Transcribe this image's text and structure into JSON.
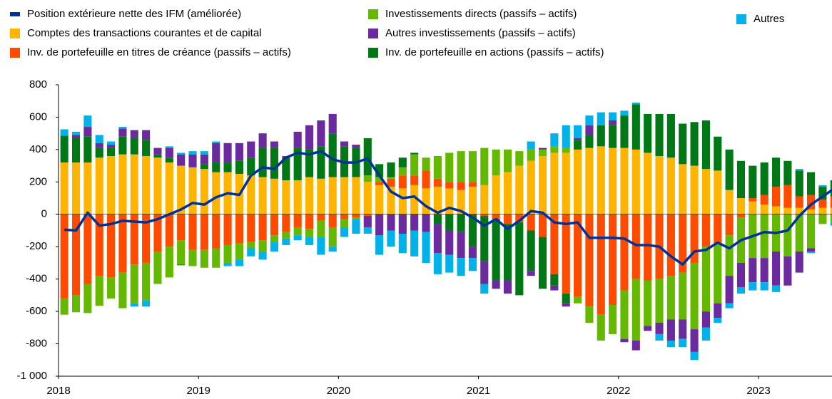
{
  "chart_data": {
    "type": "bar",
    "categories": [
      "2018",
      null,
      null,
      null,
      null,
      null,
      null,
      null,
      null,
      null,
      null,
      null,
      "2019",
      null,
      null,
      null,
      null,
      null,
      null,
      null,
      null,
      null,
      null,
      null,
      "2020",
      null,
      null,
      null,
      null,
      null,
      null,
      null,
      null,
      null,
      null,
      null,
      "2021",
      null,
      null,
      null,
      null,
      null,
      null,
      null,
      null,
      null,
      null,
      null,
      "2022",
      null,
      null,
      null,
      null,
      null,
      null,
      null,
      null,
      null,
      null,
      null,
      "2023",
      null,
      null,
      null,
      null,
      null,
      null
    ],
    "ylim": [
      -1000,
      800
    ],
    "yticks": [
      800,
      600,
      400,
      200,
      0,
      -200,
      -400,
      -600,
      -800,
      {
        "value": -1000,
        "label": "-1 000"
      }
    ],
    "grid": false,
    "series": [
      {
        "name": "Position extérieure nette des IFM (améliorée)",
        "type": "line",
        "color": "#003299",
        "values": [
          -95,
          -100,
          10,
          -70,
          -60,
          -40,
          -45,
          -50,
          -30,
          0,
          30,
          70,
          60,
          105,
          130,
          120,
          240,
          290,
          280,
          350,
          380,
          370,
          390,
          340,
          320,
          320,
          345,
          240,
          140,
          100,
          110,
          50,
          10,
          40,
          20,
          -20,
          -70,
          -30,
          -90,
          -40,
          20,
          10,
          -50,
          -60,
          -50,
          -145,
          -145,
          -145,
          -150,
          -190,
          -190,
          -200,
          -260,
          -310,
          -230,
          -220,
          -175,
          -210,
          -160,
          -135,
          -110,
          -115,
          -100,
          -10,
          60,
          110,
          160
        ]
      },
      {
        "name": "Comptes des transactions courantes et de capital",
        "type": "bar",
        "color": "#ffb400",
        "values": [
          320,
          320,
          320,
          350,
          360,
          370,
          370,
          360,
          350,
          320,
          300,
          290,
          280,
          260,
          260,
          250,
          240,
          230,
          220,
          210,
          210,
          230,
          220,
          230,
          230,
          230,
          200,
          180,
          170,
          160,
          180,
          160,
          170,
          160,
          150,
          170,
          180,
          240,
          260,
          300,
          330,
          360,
          380,
          380,
          400,
          410,
          420,
          410,
          410,
          400,
          380,
          360,
          350,
          310,
          300,
          280,
          270,
          150,
          100,
          80,
          60,
          50,
          40,
          40,
          30,
          40,
          40
        ]
      },
      {
        "name": "Inv. de portefeuille en titres de créance (passifs – actifs)",
        "type": "bar",
        "color": "#ff4b00",
        "values": [
          -520,
          -500,
          -430,
          -380,
          -390,
          -360,
          -310,
          -300,
          -230,
          -200,
          -160,
          -220,
          -220,
          -210,
          -190,
          -180,
          -170,
          -160,
          -130,
          -110,
          -80,
          -90,
          -40,
          -80,
          -30,
          -20,
          -10,
          20,
          50,
          80,
          60,
          110,
          50,
          40,
          50,
          30,
          -10,
          -30,
          -60,
          -50,
          -100,
          -140,
          -370,
          -490,
          -510,
          -570,
          -620,
          -560,
          -470,
          -400,
          -410,
          -400,
          -380,
          -360,
          -300,
          -200,
          -180,
          -130,
          -20,
          20,
          60,
          120,
          140,
          70,
          90,
          50,
          70
        ]
      },
      {
        "name": "Investissements directs (passifs – actifs)",
        "type": "bar",
        "color": "#65b800",
        "values": [
          -100,
          -105,
          -180,
          -185,
          -130,
          -220,
          -240,
          -230,
          -200,
          -190,
          -150,
          -100,
          -110,
          -120,
          -110,
          -100,
          -40,
          -70,
          -40,
          -40,
          -50,
          -50,
          -100,
          -120,
          -50,
          -10,
          40,
          30,
          10,
          50,
          130,
          80,
          140,
          180,
          190,
          190,
          230,
          160,
          140,
          90,
          70,
          40,
          40,
          30,
          -40,
          -100,
          -160,
          -180,
          -300,
          -380,
          -280,
          -270,
          -270,
          -290,
          -410,
          -400,
          -370,
          -250,
          -280,
          -270,
          -270,
          -230,
          -260,
          -230,
          -210,
          -60,
          -50
        ]
      },
      {
        "name": "Inv. de portefeuille en actions (passifs – actifs)",
        "type": "bar",
        "color": "#007816",
        "values": [
          165,
          150,
          160,
          60,
          50,
          110,
          100,
          100,
          20,
          30,
          -5,
          0,
          30,
          60,
          60,
          80,
          110,
          180,
          190,
          140,
          200,
          170,
          200,
          270,
          190,
          180,
          230,
          80,
          90,
          60,
          10,
          0,
          -60,
          -100,
          -110,
          -200,
          -280,
          -380,
          -350,
          -450,
          -250,
          -320,
          -70,
          -60,
          60,
          80,
          130,
          140,
          200,
          280,
          240,
          260,
          270,
          250,
          270,
          300,
          210,
          250,
          230,
          200,
          200,
          180,
          150,
          160,
          140,
          80,
          100
        ]
      },
      {
        "name": "Autres investissements (passifs – actifs)",
        "type": "bar",
        "color": "#6b2a9e",
        "values": [
          0,
          20,
          60,
          30,
          20,
          50,
          50,
          60,
          40,
          60,
          70,
          80,
          60,
          120,
          120,
          110,
          100,
          90,
          40,
          10,
          100,
          150,
          160,
          120,
          30,
          20,
          -70,
          -130,
          -100,
          -120,
          -100,
          -110,
          -180,
          -150,
          -160,
          -70,
          -140,
          -50,
          -80,
          0,
          -30,
          10,
          -30,
          -20,
          10,
          60,
          0,
          30,
          -20,
          -60,
          -30,
          -70,
          -130,
          -120,
          -140,
          -100,
          -90,
          -170,
          -150,
          -150,
          -150,
          -210,
          -180,
          -130,
          -20,
          0,
          0
        ]
      },
      {
        "name": "Autres",
        "type": "bar",
        "color": "#00b1ea",
        "values": [
          40,
          20,
          70,
          50,
          20,
          10,
          -20,
          -40,
          0,
          10,
          10,
          20,
          20,
          10,
          -20,
          -40,
          -50,
          -50,
          -60,
          -40,
          -30,
          -50,
          -110,
          -30,
          -60,
          -90,
          -40,
          -120,
          -100,
          -120,
          -160,
          -190,
          -130,
          -110,
          -110,
          -80,
          -60,
          0,
          0,
          0,
          50,
          0,
          80,
          140,
          80,
          60,
          80,
          50,
          30,
          10,
          0,
          -40,
          -40,
          -50,
          -50,
          -80,
          -30,
          -30,
          -40,
          -50,
          -50,
          -40,
          0,
          10,
          -10,
          10,
          -20
        ]
      }
    ]
  }
}
